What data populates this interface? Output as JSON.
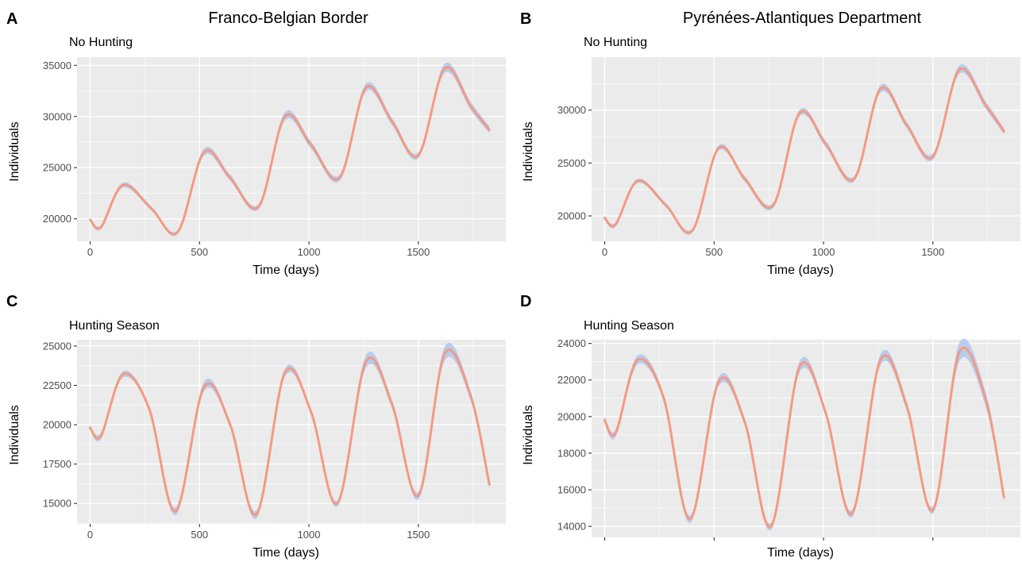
{
  "figure": {
    "columns": [
      {
        "title": "Franco-Belgian Border"
      },
      {
        "title": "Pyrénées-Atlantiques Department"
      }
    ]
  },
  "style": {
    "panel_bg": "#ebebeb",
    "grid_color": "#ffffff",
    "band_color": "#aec7f0",
    "line_color": "#f39a82"
  },
  "chart_data": [
    {
      "panel": "A",
      "type": "line",
      "subtitle": "No Hunting",
      "xlabel": "Time (days)",
      "ylabel": "Individuals",
      "xlim": [
        -60,
        1900
      ],
      "ylim": [
        17800,
        35800
      ],
      "xticks": [
        0,
        500,
        1000,
        1500
      ],
      "xtick_labels": [
        "0",
        "500",
        "1000",
        "1500"
      ],
      "yticks": [
        20000,
        25000,
        30000,
        35000
      ],
      "ytick_labels": [
        "20000",
        "25000",
        "30000",
        "35000"
      ],
      "grid": true,
      "x": [
        0,
        50,
        150,
        280,
        400,
        520,
        640,
        770,
        890,
        1010,
        1140,
        1260,
        1380,
        1500,
        1620,
        1740,
        1825
      ],
      "values": [
        19900,
        19200,
        23300,
        21000,
        18700,
        26500,
        24000,
        21200,
        30000,
        27200,
        24000,
        32800,
        29500,
        26200,
        34700,
        31000,
        28700
      ],
      "band_halfwidth": [
        200,
        200,
        250,
        200,
        200,
        350,
        300,
        250,
        400,
        350,
        300,
        400,
        350,
        300,
        450,
        400,
        350
      ]
    },
    {
      "panel": "B",
      "type": "line",
      "subtitle": "No Hunting",
      "xlabel": "Time (days)",
      "ylabel": "Individuals",
      "xlim": [
        -60,
        1900
      ],
      "ylim": [
        17600,
        35000
      ],
      "xticks": [
        0,
        500,
        1000,
        1500
      ],
      "xtick_labels": [
        "0",
        "500",
        "1000",
        "1500"
      ],
      "yticks": [
        20000,
        25000,
        30000
      ],
      "ytick_labels": [
        "20000",
        "25000",
        "30000"
      ],
      "grid": true,
      "x": [
        0,
        50,
        150,
        280,
        400,
        520,
        640,
        770,
        890,
        1010,
        1140,
        1260,
        1380,
        1500,
        1620,
        1740,
        1825
      ],
      "values": [
        19800,
        19200,
        23300,
        21000,
        18600,
        26400,
        23500,
        21000,
        29700,
        26800,
        23500,
        32000,
        28600,
        25600,
        33800,
        30500,
        28000
      ],
      "band_halfwidth": [
        200,
        200,
        200,
        200,
        200,
        250,
        250,
        250,
        300,
        300,
        250,
        350,
        300,
        300,
        400,
        350,
        300
      ]
    },
    {
      "panel": "C",
      "type": "line",
      "subtitle": "Hunting Season",
      "xlabel": "Time (days)",
      "ylabel": "Individuals",
      "xlim": [
        -60,
        1900
      ],
      "ylim": [
        13700,
        25400
      ],
      "xticks": [
        0,
        500,
        1000,
        1500
      ],
      "xtick_labels": [
        "0",
        "500",
        "1000",
        "1500"
      ],
      "yticks": [
        15000,
        17500,
        20000,
        22500,
        25000
      ],
      "ytick_labels": [
        "15000",
        "17500",
        "20000",
        "22500",
        "25000"
      ],
      "grid": true,
      "x": [
        0,
        50,
        150,
        270,
        390,
        520,
        640,
        760,
        890,
        1010,
        1130,
        1260,
        1380,
        1500,
        1620,
        1740,
        1825
      ],
      "values": [
        19800,
        19300,
        23200,
        21000,
        14500,
        22400,
        20000,
        14300,
        23300,
        20800,
        15000,
        24000,
        21300,
        15500,
        24500,
        21800,
        16200
      ],
      "band_halfwidth": [
        150,
        200,
        200,
        150,
        250,
        300,
        200,
        250,
        250,
        200,
        200,
        400,
        250,
        250,
        450,
        300,
        200
      ]
    },
    {
      "panel": "D",
      "type": "line",
      "subtitle": "Hunting Season",
      "xlabel": "Time (days)",
      "ylabel": "Individuals",
      "xlim": [
        -60,
        1900
      ],
      "ylim": [
        13400,
        24200
      ],
      "xticks": [
        0,
        500,
        1000,
        1500
      ],
      "xtick_labels": [
        "",
        "",
        "",
        ""
      ],
      "yticks": [
        14000,
        16000,
        18000,
        20000,
        22000,
        24000
      ],
      "ytick_labels": [
        "14000",
        "16000",
        "18000",
        "20000",
        "22000",
        "24000"
      ],
      "grid": true,
      "x": [
        0,
        50,
        150,
        270,
        390,
        520,
        640,
        760,
        890,
        1010,
        1130,
        1260,
        1380,
        1500,
        1620,
        1740,
        1825
      ],
      "values": [
        19800,
        19100,
        23100,
        21000,
        14400,
        21900,
        19700,
        14000,
        22700,
        20200,
        14700,
        23100,
        20600,
        14900,
        23500,
        21000,
        15600
      ],
      "band_halfwidth": [
        200,
        200,
        250,
        200,
        200,
        250,
        200,
        200,
        300,
        200,
        200,
        300,
        250,
        200,
        500,
        400,
        300
      ]
    }
  ]
}
